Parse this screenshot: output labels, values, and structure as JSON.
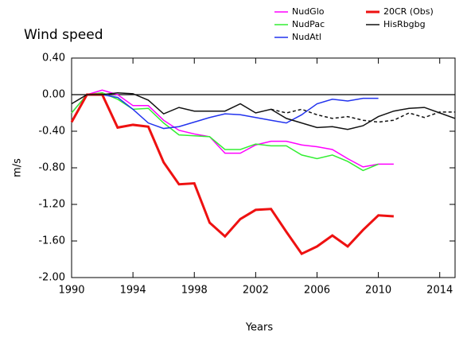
{
  "chart_data": {
    "type": "line",
    "title": "Wind speed",
    "xlabel": "Years",
    "ylabel": "m/s",
    "x": [
      1990,
      1991,
      1992,
      1993,
      1994,
      1995,
      1996,
      1997,
      1998,
      1999,
      2000,
      2001,
      2002,
      2003,
      2004,
      2005,
      2006,
      2007,
      2008,
      2009,
      2010,
      2011,
      2012,
      2013,
      2014,
      2015
    ],
    "series": [
      {
        "name": "NudGlo",
        "color": "#ff00ff",
        "width": 1.5,
        "values": [
          -0.2,
          0.0,
          0.05,
          0.0,
          -0.12,
          -0.12,
          -0.28,
          -0.39,
          -0.43,
          -0.46,
          -0.64,
          -0.64,
          -0.55,
          -0.51,
          -0.51,
          -0.55,
          -0.57,
          -0.6,
          -0.7,
          -0.79,
          -0.76,
          -0.76,
          null,
          null,
          null,
          null
        ]
      },
      {
        "name": "NudPac",
        "color": "#33ee33",
        "width": 1.5,
        "values": [
          -0.2,
          0.0,
          0.02,
          -0.05,
          -0.16,
          -0.15,
          -0.31,
          -0.44,
          -0.45,
          -0.46,
          -0.6,
          -0.6,
          -0.54,
          -0.56,
          -0.56,
          -0.66,
          -0.7,
          -0.66,
          -0.73,
          -0.83,
          -0.76,
          null,
          null,
          null,
          null,
          null
        ]
      },
      {
        "name": "NudAtl",
        "color": "#2233ee",
        "width": 1.5,
        "values": [
          null,
          0.0,
          0.0,
          -0.03,
          -0.16,
          -0.31,
          -0.37,
          -0.35,
          -0.3,
          -0.25,
          -0.21,
          -0.22,
          -0.25,
          -0.28,
          -0.31,
          -0.22,
          -0.1,
          -0.05,
          -0.07,
          -0.04,
          -0.04,
          null,
          null,
          null,
          null,
          null
        ]
      },
      {
        "name": "20CR (Obs)",
        "color": "#ee1111",
        "width": 3,
        "values": [
          -0.3,
          0.0,
          0.0,
          -0.36,
          -0.33,
          -0.35,
          -0.74,
          -0.98,
          -0.97,
          -1.4,
          -1.55,
          -1.36,
          -1.26,
          -1.25,
          -1.5,
          -1.74,
          -1.66,
          -1.54,
          -1.66,
          -1.48,
          -1.32,
          -1.33,
          null,
          null,
          null,
          null
        ]
      },
      {
        "name": "HisRbgbg",
        "color": "#111111",
        "width": 1.5,
        "values": [
          -0.1,
          0.0,
          0.0,
          0.02,
          0.01,
          -0.06,
          -0.21,
          -0.14,
          -0.18,
          -0.18,
          -0.18,
          -0.1,
          -0.2,
          -0.16,
          -0.26,
          -0.31,
          -0.36,
          -0.35,
          -0.38,
          -0.34,
          -0.24,
          -0.18,
          -0.15,
          -0.14,
          -0.2,
          -0.26
        ]
      },
      {
        "color": "#111111",
        "width": 1.5,
        "dash": true,
        "values": [
          null,
          null,
          null,
          null,
          null,
          null,
          null,
          null,
          null,
          null,
          null,
          null,
          null,
          -0.16,
          -0.2,
          -0.16,
          -0.22,
          -0.26,
          -0.24,
          -0.28,
          -0.3,
          -0.28,
          -0.2,
          -0.25,
          -0.19,
          -0.19
        ]
      }
    ],
    "xlim": [
      1990,
      2015
    ],
    "ylim": [
      -2.0,
      0.4
    ],
    "xticks": [
      1990,
      1994,
      1998,
      2002,
      2006,
      2010,
      2014
    ],
    "yticks": [
      {
        "value": 0.4,
        "label": "0.40"
      },
      {
        "value": 0.0,
        "label": "0.00"
      },
      {
        "value": -0.4,
        "label": "-0.40"
      },
      {
        "value": -0.8,
        "label": "-0.80"
      },
      {
        "value": -1.2,
        "label": "-1.20"
      },
      {
        "value": -1.6,
        "label": "-1.60"
      },
      {
        "value": -2.0,
        "label": "-2.00"
      }
    ]
  }
}
